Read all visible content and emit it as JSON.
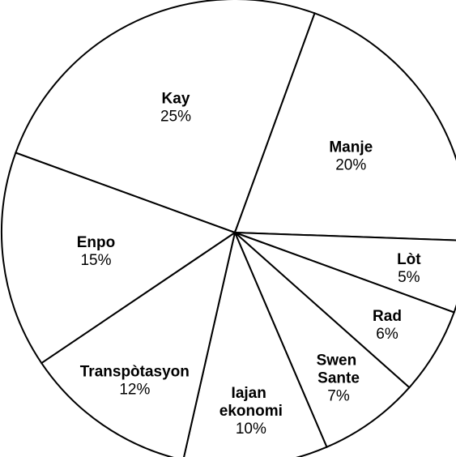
{
  "chart_data": {
    "type": "pie",
    "categories": [
      "Kay",
      "Manje",
      "Lòt",
      "Rad",
      "Swen Sante",
      "Iajan ekonomi",
      "Transpòtasyon",
      "Enpo"
    ],
    "values": [
      25,
      20,
      5,
      6,
      7,
      10,
      12,
      15
    ],
    "value_labels": [
      "25%",
      "20%",
      "5%",
      "6%",
      "7%",
      "10%",
      "12%",
      "15%"
    ],
    "color": "#ffffff"
  }
}
